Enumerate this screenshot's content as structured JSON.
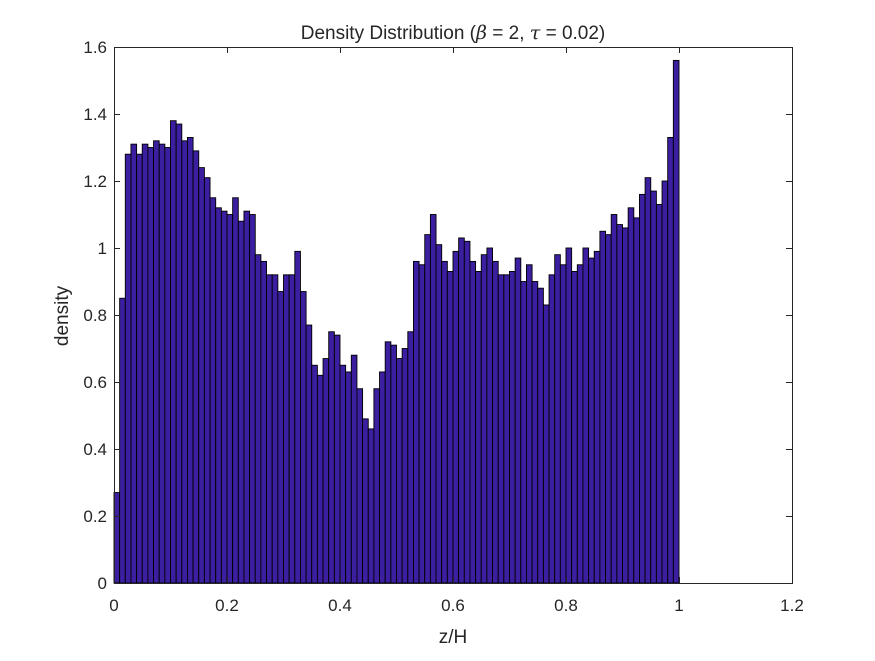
{
  "chart_data": {
    "type": "bar",
    "title_parts": [
      "Density Distribution (",
      "β",
      " = 2, ",
      "τ",
      " = 0.02)"
    ],
    "xlabel": "z/H",
    "ylabel": "density",
    "xlim": [
      0,
      1.2
    ],
    "ylim": [
      0,
      1.6
    ],
    "x_ticks": [
      "0",
      "0.2",
      "0.4",
      "0.6",
      "0.8",
      "1",
      "1.2"
    ],
    "y_ticks": [
      "0",
      "0.2",
      "0.4",
      "0.6",
      "0.8",
      "1",
      "1.2",
      "1.4",
      "1.6"
    ],
    "grid": false,
    "bin_start": 0,
    "bin_width": 0.01,
    "bar_color": "#3B1FA0",
    "edge_color": "#000000",
    "values": [
      0.27,
      0.85,
      1.28,
      1.31,
      1.28,
      1.31,
      1.3,
      1.32,
      1.31,
      1.3,
      1.38,
      1.37,
      1.32,
      1.33,
      1.29,
      1.24,
      1.21,
      1.15,
      1.12,
      1.11,
      1.1,
      1.15,
      1.08,
      1.11,
      1.1,
      0.98,
      0.96,
      0.92,
      0.92,
      0.87,
      0.92,
      0.92,
      0.99,
      0.87,
      0.77,
      0.65,
      0.62,
      0.67,
      0.75,
      0.74,
      0.65,
      0.63,
      0.68,
      0.58,
      0.49,
      0.46,
      0.58,
      0.63,
      0.72,
      0.71,
      0.67,
      0.7,
      0.75,
      0.96,
      0.95,
      1.04,
      1.1,
      1.01,
      0.96,
      0.93,
      0.99,
      1.03,
      1.02,
      0.96,
      0.93,
      0.98,
      1.0,
      0.96,
      0.92,
      0.92,
      0.93,
      0.97,
      0.9,
      0.95,
      0.9,
      0.88,
      0.83,
      0.92,
      0.98,
      0.95,
      1.0,
      0.93,
      0.95,
      1.0,
      0.97,
      0.99,
      1.05,
      1.04,
      1.1,
      1.07,
      1.06,
      1.12,
      1.09,
      1.16,
      1.21,
      1.17,
      1.13,
      1.2,
      1.33,
      1.56
    ]
  }
}
